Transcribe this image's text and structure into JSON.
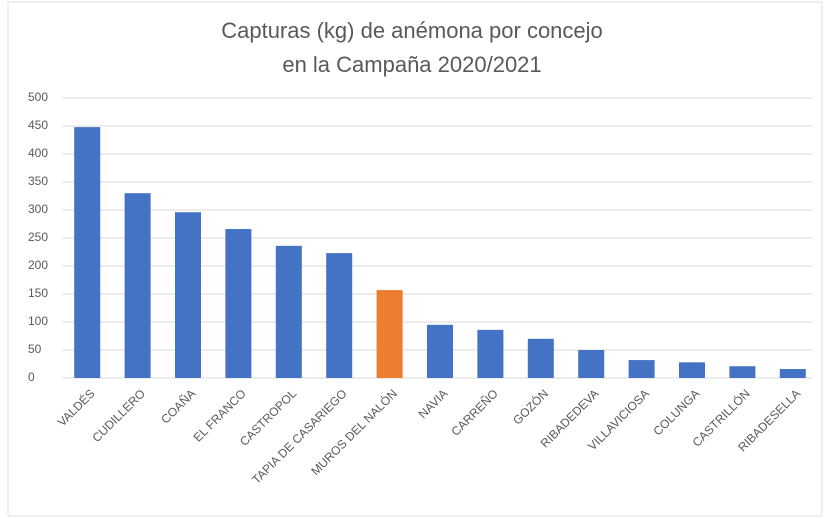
{
  "chart_data": {
    "type": "bar",
    "title": "Capturas (kg) de anémona por concejo en la Campaña 2020/2021",
    "categories": [
      "VALDÉS",
      "CUDILLERO",
      "COAÑA",
      "EL FRANCO",
      "CASTROPOL",
      "TAPIA DE CASARIEGO",
      "MUROS DEL NALÓN",
      "NAVIA",
      "CARREÑO",
      "GOZÓN",
      "RIBADEDEVA",
      "VILLAVICIOSA",
      "COLUNGA",
      "CASTRILLÓN",
      "RIBADESELLA"
    ],
    "values": [
      448,
      330,
      296,
      266,
      236,
      223,
      157,
      95,
      86,
      70,
      50,
      32,
      28,
      21,
      16
    ],
    "colors": [
      "#4472c4",
      "#4472c4",
      "#4472c4",
      "#4472c4",
      "#4472c4",
      "#4472c4",
      "#ed7d31",
      "#4472c4",
      "#4472c4",
      "#4472c4",
      "#4472c4",
      "#4472c4",
      "#4472c4",
      "#4472c4",
      "#4472c4"
    ],
    "ylim": [
      0,
      500
    ],
    "yticks": [
      0,
      50,
      100,
      150,
      200,
      250,
      300,
      350,
      400,
      450,
      500
    ],
    "grid": true
  }
}
